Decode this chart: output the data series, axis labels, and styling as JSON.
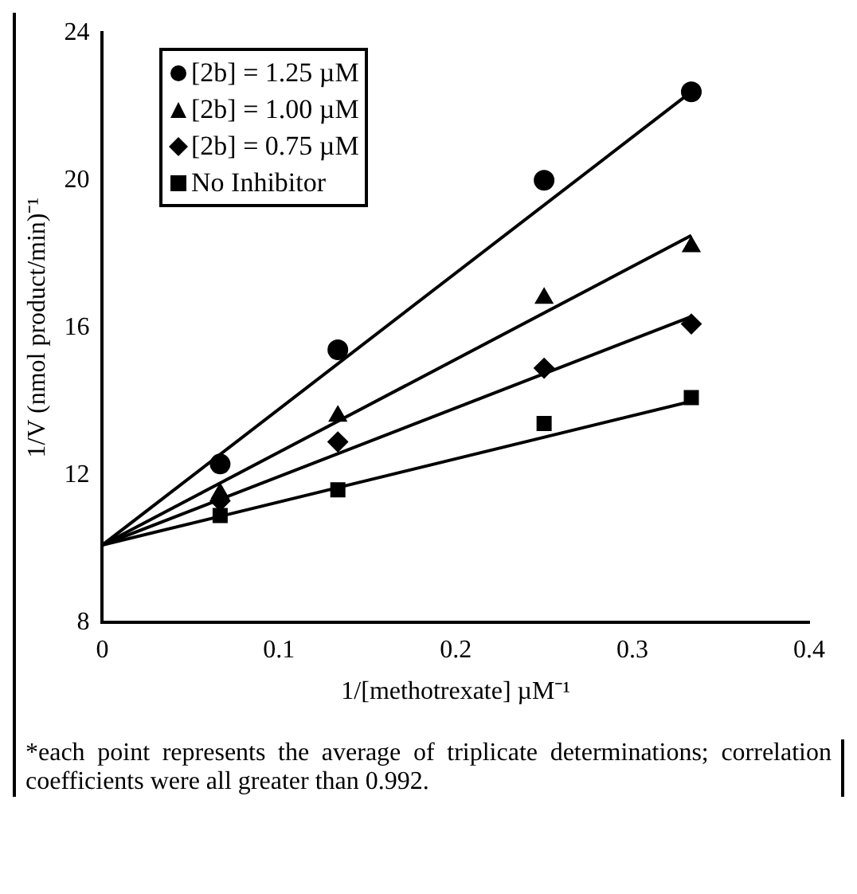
{
  "chart_data": {
    "type": "scatter",
    "xlabel": "1/[methotrexate] µM⁻¹",
    "ylabel": "1/V (nmol product/min)⁻¹",
    "xlim": [
      0,
      0.4
    ],
    "xticks": [
      0,
      0.1,
      0.2,
      0.3,
      0.4
    ],
    "ylim": [
      8,
      24
    ],
    "yticks": [
      8,
      12,
      16,
      20,
      24
    ],
    "grid": false,
    "legend": "top left",
    "series": [
      {
        "name": "[2b] = 1.25 µM",
        "color": "#000000",
        "marker": "circle",
        "x": [
          0.0667,
          0.1333,
          0.25,
          0.3333
        ],
        "values": [
          12.3,
          15.4,
          20.0,
          22.4
        ]
      },
      {
        "name": "[2b] = 1.00 µM",
        "color": "#000000",
        "marker": "triangle",
        "x": [
          0.0667,
          0.1333,
          0.25,
          0.3333
        ],
        "values": [
          11.5,
          13.6,
          16.8,
          18.2
        ]
      },
      {
        "name": "[2b] = 0.75 µM",
        "color": "#000000",
        "marker": "diamond",
        "x": [
          0.0667,
          0.1333,
          0.25,
          0.3333
        ],
        "values": [
          11.3,
          12.9,
          14.9,
          16.1
        ]
      },
      {
        "name": "No Inhibitor",
        "color": "#000000",
        "marker": "square",
        "x": [
          0.0667,
          0.1333,
          0.25,
          0.3333
        ],
        "values": [
          10.9,
          11.6,
          13.4,
          14.1
        ]
      },
      {
        "type": "line",
        "color": "#000000",
        "marker": "none",
        "x": [
          0,
          0.3333
        ],
        "values": [
          10.1,
          22.4
        ]
      },
      {
        "type": "line",
        "color": "#000000",
        "marker": "none",
        "x": [
          0,
          0.3333
        ],
        "values": [
          10.1,
          18.5
        ]
      },
      {
        "type": "line",
        "color": "#000000",
        "marker": "none",
        "x": [
          0,
          0.3333
        ],
        "values": [
          10.1,
          16.3
        ]
      },
      {
        "type": "line",
        "color": "#000000",
        "marker": "none",
        "x": [
          0,
          0.3333
        ],
        "values": [
          10.1,
          14.0
        ]
      }
    ],
    "annotations": [
      "*each point represents the average of triplicate determinations; correlation coefficients were all greater than 0.992."
    ]
  }
}
